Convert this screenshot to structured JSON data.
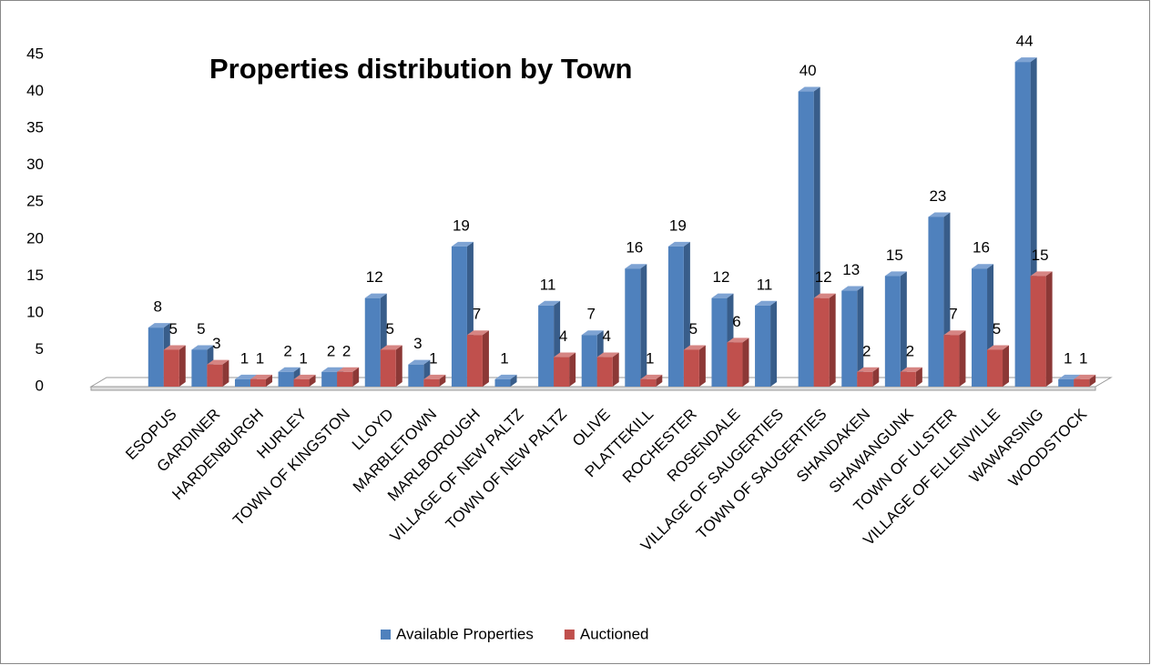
{
  "chart_data": {
    "type": "bar3d",
    "title": "Properties distribution by Town",
    "categories": [
      "ESOPUS",
      "GARDINER",
      "HARDENBURGH",
      "HURLEY",
      "TOWN OF KINGSTON",
      "LLOYD",
      "MARBLETOWN",
      "MARLBOROUGH",
      "VILLAGE OF NEW PALTZ",
      "TOWN OF NEW PALTZ",
      "OLIVE",
      "PLATTEKILL",
      "ROCHESTER",
      "ROSENDALE",
      "VILLAGE OF SAUGERTIES",
      "TOWN OF SAUGERTIES",
      "SHANDAKEN",
      "SHAWANGUNK",
      "TOWN OF ULSTER",
      "VILLAGE OF ELLENVILLE",
      "WAWARSING",
      "WOODSTOCK"
    ],
    "series": [
      {
        "name": "Available Properties",
        "color": "#4f81bd",
        "side": "#385d8a",
        "top": "#7ea3d3",
        "values": [
          8,
          5,
          1,
          2,
          2,
          12,
          3,
          19,
          1,
          11,
          7,
          16,
          19,
          12,
          11,
          40,
          13,
          15,
          23,
          16,
          44,
          1
        ]
      },
      {
        "name": "Auctioned",
        "color": "#c0504d",
        "side": "#8c3836",
        "top": "#d68583",
        "values": [
          5,
          3,
          1,
          1,
          2,
          5,
          1,
          7,
          null,
          4,
          4,
          1,
          5,
          6,
          null,
          12,
          2,
          2,
          7,
          5,
          15,
          1
        ]
      }
    ],
    "ylim": [
      0,
      45
    ],
    "yticks": [
      0,
      5,
      10,
      15,
      20,
      25,
      30,
      35,
      40,
      45
    ],
    "grid": false,
    "legend": "bottom"
  }
}
